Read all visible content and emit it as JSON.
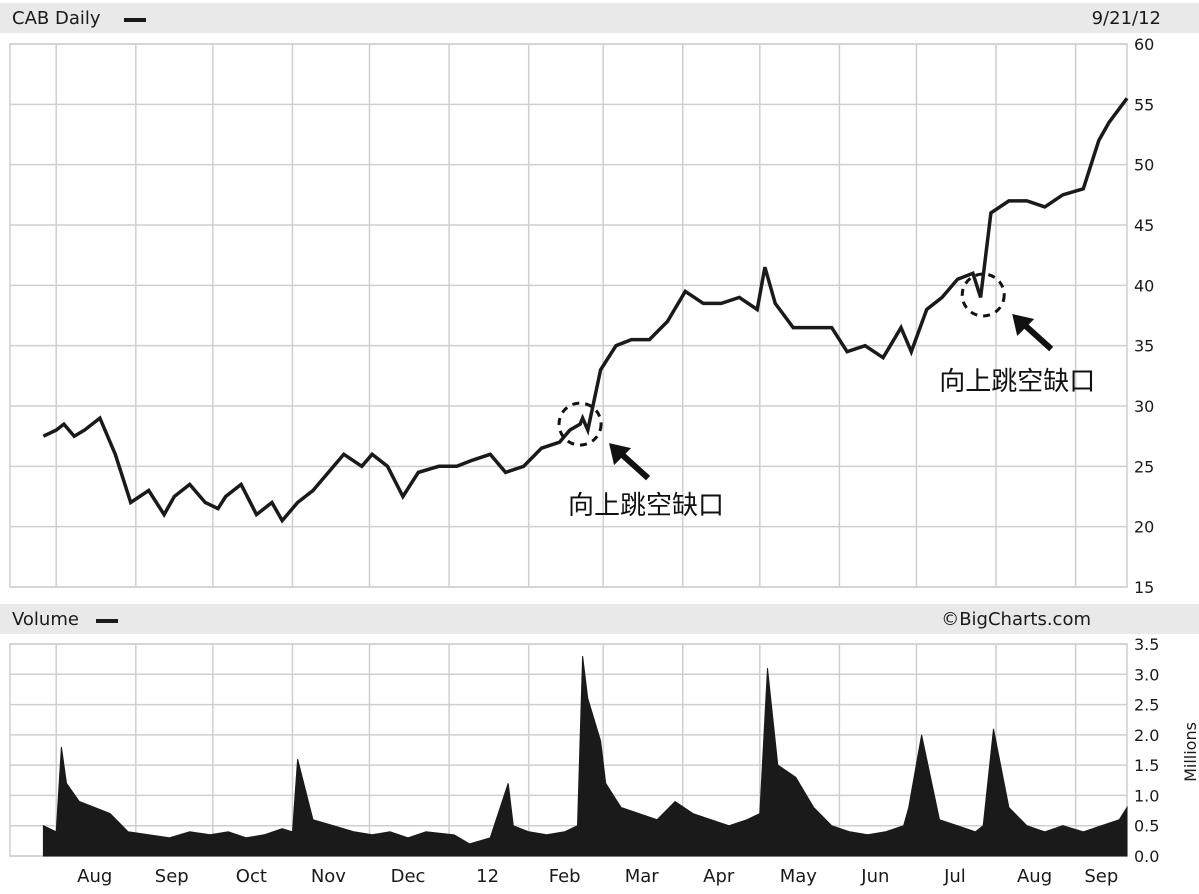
{
  "header": {
    "title": "CAB Daily",
    "date": "9/21/12",
    "volume_title": "Volume",
    "copyright": "©BigCharts.com"
  },
  "colors": {
    "line": "#1a1a1a",
    "grid": "#cfcfcf",
    "header_bg": "#e9e9e9"
  },
  "chart_data": [
    {
      "type": "line",
      "title": "CAB Daily",
      "ylabel": "",
      "xlabel": "",
      "ylim": [
        15,
        60
      ],
      "yticks": [
        15,
        20,
        25,
        30,
        35,
        40,
        45,
        50,
        55,
        60
      ],
      "grid": true,
      "x_labels": [
        "Aug",
        "Sep",
        "Oct",
        "Nov",
        "Dec",
        "12",
        "Feb",
        "Mar",
        "Apr",
        "May",
        "Jun",
        "Jul",
        "Aug",
        "Sep"
      ],
      "x": [
        "2011-07-27",
        "2011-08-01",
        "2011-08-04",
        "2011-08-08",
        "2011-08-12",
        "2011-08-18",
        "2011-08-24",
        "2011-08-30",
        "2011-09-06",
        "2011-09-12",
        "2011-09-16",
        "2011-09-22",
        "2011-09-28",
        "2011-10-03",
        "2011-10-06",
        "2011-10-12",
        "2011-10-18",
        "2011-10-24",
        "2011-10-28",
        "2011-11-03",
        "2011-11-09",
        "2011-11-15",
        "2011-11-21",
        "2011-11-28",
        "2011-12-02",
        "2011-12-08",
        "2011-12-14",
        "2011-12-20",
        "2011-12-28",
        "2012-01-04",
        "2012-01-10",
        "2012-01-17",
        "2012-01-23",
        "2012-01-30",
        "2012-02-06",
        "2012-02-13",
        "2012-02-17",
        "2012-02-21",
        "2012-02-22",
        "2012-02-24",
        "2012-02-29",
        "2012-03-06",
        "2012-03-12",
        "2012-03-19",
        "2012-03-26",
        "2012-04-02",
        "2012-04-09",
        "2012-04-16",
        "2012-04-23",
        "2012-04-30",
        "2012-05-03",
        "2012-05-07",
        "2012-05-14",
        "2012-05-21",
        "2012-05-29",
        "2012-06-04",
        "2012-06-11",
        "2012-06-18",
        "2012-06-25",
        "2012-06-29",
        "2012-07-05",
        "2012-07-11",
        "2012-07-17",
        "2012-07-23",
        "2012-07-26",
        "2012-07-30",
        "2012-08-06",
        "2012-08-13",
        "2012-08-20",
        "2012-08-27",
        "2012-09-04",
        "2012-09-10",
        "2012-09-14",
        "2012-09-21"
      ],
      "series": [
        {
          "name": "",
          "values": [
            27.5,
            28.0,
            28.5,
            27.5,
            28.0,
            29.0,
            26.0,
            22.0,
            23.0,
            21.0,
            22.5,
            23.5,
            22.0,
            21.5,
            22.5,
            23.5,
            21.0,
            22.0,
            20.5,
            22.0,
            23.0,
            24.5,
            26.0,
            25.0,
            26.0,
            25.0,
            22.5,
            24.5,
            25.0,
            25.0,
            25.5,
            26.0,
            24.5,
            25.0,
            26.5,
            27.0,
            28.0,
            28.5,
            29.0,
            28.0,
            33.0,
            35.0,
            35.5,
            35.5,
            37.0,
            39.5,
            38.5,
            38.5,
            39.0,
            38.0,
            41.5,
            38.5,
            36.5,
            36.5,
            36.5,
            34.5,
            35.0,
            34.0,
            36.5,
            34.5,
            38.0,
            39.0,
            40.5,
            41.0,
            39.0,
            46.0,
            47.0,
            47.0,
            46.5,
            47.5,
            48.0,
            52.0,
            53.5,
            55.5
          ]
        }
      ],
      "annotations": [
        {
          "text": "向上跳空缺口",
          "x": "2012-02-21",
          "y": 28.5
        },
        {
          "text": "向上跳空缺口",
          "x": "2012-07-27",
          "y": 39.2
        }
      ]
    },
    {
      "type": "area",
      "title": "Volume",
      "ylabel": "Millions",
      "xlabel": "",
      "ylim": [
        0,
        3.5
      ],
      "yticks": [
        "0.0",
        "0.5",
        "1.0",
        "1.5",
        "2.0",
        "2.5",
        "3.0",
        "3.5"
      ],
      "grid": true,
      "x_labels": [
        "Aug",
        "Sep",
        "Oct",
        "Nov",
        "Dec",
        "12",
        "Feb",
        "Mar",
        "Apr",
        "May",
        "Jun",
        "Jul",
        "Aug",
        "Sep"
      ],
      "x": [
        "2011-07-27",
        "2011-08-01",
        "2011-08-03",
        "2011-08-05",
        "2011-08-10",
        "2011-08-16",
        "2011-08-22",
        "2011-08-29",
        "2011-09-06",
        "2011-09-14",
        "2011-09-22",
        "2011-09-30",
        "2011-10-07",
        "2011-10-14",
        "2011-10-21",
        "2011-10-28",
        "2011-11-01",
        "2011-11-03",
        "2011-11-09",
        "2011-11-17",
        "2011-11-25",
        "2011-12-02",
        "2011-12-09",
        "2011-12-16",
        "2011-12-23",
        "2012-01-03",
        "2012-01-09",
        "2012-01-17",
        "2012-01-24",
        "2012-01-26",
        "2012-02-01",
        "2012-02-08",
        "2012-02-15",
        "2012-02-20",
        "2012-02-22",
        "2012-02-24",
        "2012-02-29",
        "2012-03-02",
        "2012-03-08",
        "2012-03-15",
        "2012-03-22",
        "2012-03-29",
        "2012-04-05",
        "2012-04-12",
        "2012-04-19",
        "2012-04-26",
        "2012-05-01",
        "2012-05-04",
        "2012-05-08",
        "2012-05-15",
        "2012-05-22",
        "2012-05-29",
        "2012-06-05",
        "2012-06-12",
        "2012-06-19",
        "2012-06-26",
        "2012-06-28",
        "2012-07-03",
        "2012-07-10",
        "2012-07-17",
        "2012-07-24",
        "2012-07-27",
        "2012-07-31",
        "2012-08-06",
        "2012-08-13",
        "2012-08-20",
        "2012-08-27",
        "2012-09-04",
        "2012-09-11",
        "2012-09-18",
        "2012-09-21"
      ],
      "series": [
        {
          "name": "Volume",
          "values": [
            0.5,
            0.4,
            1.8,
            1.2,
            0.9,
            0.8,
            0.7,
            0.4,
            0.35,
            0.3,
            0.4,
            0.35,
            0.4,
            0.3,
            0.35,
            0.45,
            0.4,
            1.6,
            0.6,
            0.5,
            0.4,
            0.35,
            0.4,
            0.3,
            0.4,
            0.35,
            0.2,
            0.3,
            1.2,
            0.5,
            0.4,
            0.35,
            0.4,
            0.5,
            3.3,
            2.6,
            1.9,
            1.2,
            0.8,
            0.7,
            0.6,
            0.9,
            0.7,
            0.6,
            0.5,
            0.6,
            0.7,
            3.1,
            1.5,
            1.3,
            0.8,
            0.5,
            0.4,
            0.35,
            0.4,
            0.5,
            0.8,
            2.0,
            0.6,
            0.5,
            0.4,
            0.5,
            2.1,
            0.8,
            0.5,
            0.4,
            0.5,
            0.4,
            0.5,
            0.6,
            0.8
          ]
        }
      ]
    }
  ]
}
